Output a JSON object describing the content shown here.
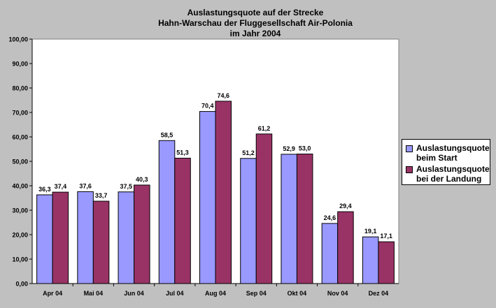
{
  "chart_data": {
    "type": "bar",
    "title_lines": [
      "Auslastungsquote auf der Strecke",
      "Hahn-Warschau der Fluggesellschaft Air-Polonia",
      "im Jahr 2004"
    ],
    "categories": [
      "Apr 04",
      "Mai 04",
      "Jun 04",
      "Jul 04",
      "Aug 04",
      "Sep 04",
      "Okt 04",
      "Nov 04",
      "Dez 04"
    ],
    "series": [
      {
        "name_lines": [
          "Auslastungsquote",
          "beim Start"
        ],
        "color": "#9999ff",
        "values": [
          36.3,
          37.6,
          37.5,
          58.5,
          70.4,
          51.2,
          52.9,
          24.6,
          19.1
        ],
        "labels": [
          "36,3",
          "37,6",
          "37,5",
          "58,5",
          "70,4",
          "51,2",
          "52,9",
          "24,6",
          "19,1"
        ]
      },
      {
        "name_lines": [
          "Auslastungsquote",
          "bei der Landung"
        ],
        "color": "#993366",
        "values": [
          37.4,
          33.7,
          40.3,
          51.3,
          74.6,
          61.2,
          53.0,
          29.4,
          17.1
        ],
        "labels": [
          "37,4",
          "33,7",
          "40,3",
          "51,3",
          "74,6",
          "61,2",
          "53,0",
          "29,4",
          "17,1"
        ]
      }
    ],
    "y_ticks": [
      0,
      10,
      20,
      30,
      40,
      50,
      60,
      70,
      80,
      90,
      100
    ],
    "y_tick_labels": [
      "0,00",
      "10,00",
      "20,00",
      "30,00",
      "40,00",
      "50,00",
      "60,00",
      "70,00",
      "80,00",
      "90,00",
      "100,00"
    ],
    "ylim": [
      0,
      100
    ],
    "grid": false,
    "legend_position": "right",
    "plot_background": "#ffffff",
    "background": "#c0c0c0"
  }
}
